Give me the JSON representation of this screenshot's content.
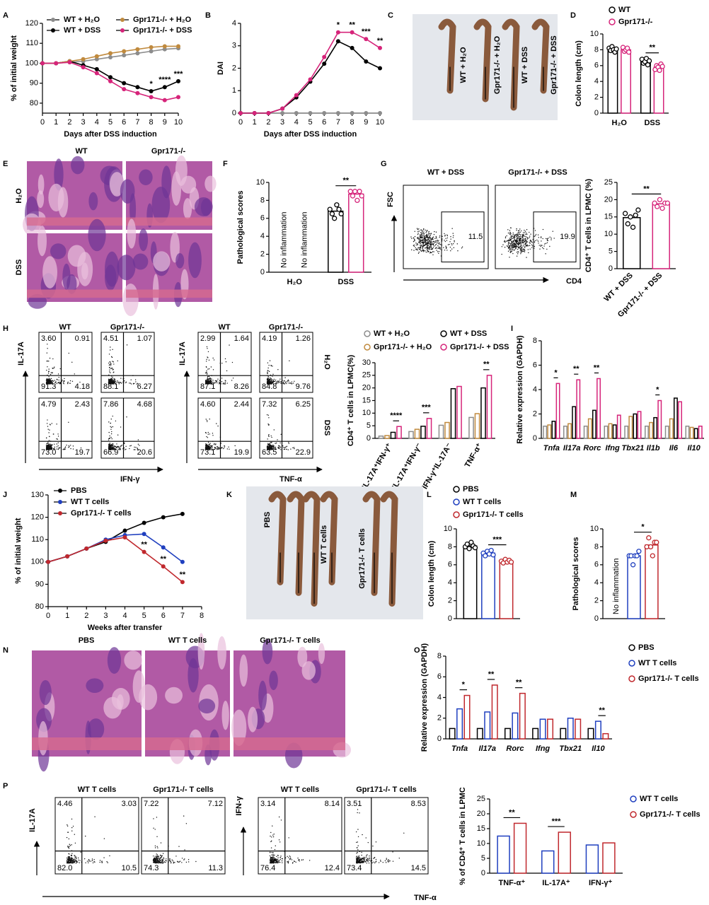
{
  "chart_data": [
    {
      "panel": "A",
      "type": "line",
      "ylabel": "% of initial weight",
      "xlabel": "Days after DSS induction",
      "x": [
        0,
        1,
        2,
        3,
        4,
        5,
        6,
        7,
        8,
        9,
        10
      ],
      "xlim": [
        0,
        10
      ],
      "xticks": [
        0,
        1,
        2,
        3,
        4,
        5,
        6,
        7,
        8,
        9,
        10
      ],
      "ylim": [
        75,
        120
      ],
      "yticks": [
        80,
        90,
        100,
        110,
        120
      ],
      "series": [
        {
          "name": "WT + H₂O",
          "color": "#8c8c8c",
          "values": [
            100,
            100,
            100.5,
            101,
            102,
            103,
            104,
            105,
            106,
            107,
            107.5
          ]
        },
        {
          "name": "WT + DSS",
          "color": "#000000",
          "values": [
            100,
            100,
            101,
            99,
            97,
            93,
            90,
            88,
            86,
            88,
            91
          ]
        },
        {
          "name": "Gpr171-/- + H₂O",
          "color": "#c08a3e",
          "values": [
            100,
            100,
            101,
            102,
            103.5,
            105,
            106,
            107,
            108,
            108.5,
            108.5
          ]
        },
        {
          "name": "Gpr171-/- + DSS",
          "color": "#d6247a",
          "values": [
            100,
            100,
            100.5,
            98,
            95,
            91,
            87,
            85,
            83,
            81.5,
            83
          ]
        }
      ],
      "significance": [
        null,
        null,
        null,
        null,
        null,
        null,
        null,
        null,
        "*",
        "****",
        "***"
      ]
    },
    {
      "panel": "B",
      "type": "line",
      "ylabel": "DAI",
      "xlabel": "Days after DSS induction",
      "x": [
        0,
        1,
        2,
        3,
        4,
        5,
        6,
        7,
        8,
        9,
        10
      ],
      "xlim": [
        0,
        10
      ],
      "xticks": [
        0,
        1,
        2,
        3,
        4,
        5,
        6,
        7,
        8,
        9,
        10
      ],
      "ylim": [
        0,
        4
      ],
      "yticks": [
        0,
        1,
        2,
        3,
        4
      ],
      "series": [
        {
          "color": "#8c8c8c",
          "values": [
            0,
            0,
            0,
            0,
            0,
            0,
            0,
            0,
            0,
            0,
            0
          ]
        },
        {
          "color": "#000000",
          "values": [
            0,
            0,
            0,
            0.2,
            0.7,
            1.4,
            2.2,
            3.2,
            2.9,
            2.3,
            2.0
          ]
        },
        {
          "color": "#d6247a",
          "values": [
            0,
            0,
            0,
            0.2,
            0.8,
            1.5,
            2.5,
            3.6,
            3.6,
            3.3,
            2.9
          ]
        }
      ],
      "significance": [
        null,
        null,
        null,
        null,
        null,
        null,
        null,
        "*",
        "**",
        "***",
        "**"
      ]
    },
    {
      "panel": "C",
      "type": "image",
      "labels": [
        "WT + H₂O",
        "Gpr171-/- + H₂O",
        "WT + DSS",
        "Gpr171-/- + DSS"
      ]
    },
    {
      "panel": "D",
      "type": "bar",
      "ylabel": "Colon length (cm)",
      "categories": [
        "H₂O",
        "DSS"
      ],
      "ylim": [
        0,
        10
      ],
      "yticks": [
        0,
        2,
        4,
        6,
        8,
        10
      ],
      "legend": true,
      "series": [
        {
          "name": "WT",
          "color": "#000000",
          "values": [
            8.0,
            6.5
          ],
          "points": [
            [
              8.2,
              7.9,
              8.4,
              8.0,
              7.7,
              8.1
            ],
            [
              6.8,
              6.3,
              6.5,
              6.9,
              6.1,
              6.6
            ]
          ]
        },
        {
          "name": "Gpr171-/-",
          "color": "#d6247a",
          "values": [
            8.0,
            5.8
          ],
          "points": [
            [
              8.3,
              7.8,
              8.0,
              8.2,
              7.7
            ],
            [
              5.5,
              6.0,
              5.8,
              5.4,
              6.2,
              5.9
            ]
          ]
        }
      ],
      "significance": [
        null,
        "**"
      ]
    },
    {
      "panel": "E",
      "type": "image",
      "column_labels": [
        "WT",
        "Gpr171-/-"
      ],
      "row_labels": [
        "H₂O",
        "DSS"
      ]
    },
    {
      "panel": "F",
      "type": "bar",
      "ylabel": "Pathological scores",
      "categories": [
        "H₂O",
        "DSS"
      ],
      "ylim": [
        0,
        10
      ],
      "yticks": [
        0,
        2,
        4,
        6,
        8,
        10
      ],
      "series": [
        {
          "color": "#000000",
          "values": [
            null,
            6.8
          ],
          "value_labels": [
            "No inflammation",
            null
          ],
          "points": [
            null,
            [
              7,
              6.5,
              6,
              7.5,
              7,
              6.5
            ]
          ]
        },
        {
          "color": "#d6247a",
          "values": [
            null,
            8.7
          ],
          "value_labels": [
            "No inflammation",
            null
          ],
          "points": [
            null,
            [
              9,
              8.5,
              9,
              8,
              9,
              8.5
            ]
          ]
        }
      ],
      "significance": [
        null,
        "**"
      ]
    },
    {
      "panel": "G",
      "type": "flow",
      "column_titles": [
        "WT + DSS",
        "Gpr171-/- + DSS"
      ],
      "y_labels": [
        "FSC"
      ],
      "x_labels": [
        "CD4"
      ],
      "plots": [
        {
          "gate": "11.5"
        },
        {
          "gate": "19.9"
        }
      ]
    },
    {
      "type": "bar",
      "ylabel": "CD4⁺ T cells in LPMC (%)",
      "categories": [
        "WT + DSS",
        "Gpr171-/- + DSS"
      ],
      "ylim": [
        0,
        25
      ],
      "yticks": [
        0,
        5,
        10,
        15,
        20,
        25
      ],
      "series": [
        {
          "colors": [
            "#000000",
            "#d6247a"
          ],
          "values": [
            14.8,
            18.8
          ],
          "points": [
            [
              16,
              13,
              15,
              12,
              15.5,
              17
            ],
            [
              19,
              18,
              20,
              17.5,
              19,
              19
            ]
          ]
        }
      ],
      "significance": "**"
    },
    {
      "panel": "H",
      "type": "flow",
      "column_titles": [
        "WT",
        "Gpr171-/-",
        "WT",
        "Gpr171-/-"
      ],
      "row_labels": [
        "H₂O",
        "DSS"
      ],
      "y_labels": [
        "IL-17A",
        "IL-17A"
      ],
      "x_labels": [
        "IFN-γ",
        "TNF-α"
      ],
      "plots": [
        {
          "quadrants": [
            "3.60",
            "0.91",
            "91.3",
            "4.18"
          ]
        },
        {
          "quadrants": [
            "4.51",
            "1.07",
            "88.1",
            "6.27"
          ]
        },
        {
          "quadrants": [
            "2.99",
            "1.64",
            "87.1",
            "8.26"
          ]
        },
        {
          "quadrants": [
            "4.19",
            "1.26",
            "84.8",
            "9.76"
          ]
        },
        {
          "quadrants": [
            "4.79",
            "2.43",
            "73.0",
            "19.7"
          ]
        },
        {
          "quadrants": [
            "7.86",
            "4.68",
            "66.9",
            "20.6"
          ]
        },
        {
          "quadrants": [
            "4.60",
            "2.44",
            "73.1",
            "19.9"
          ]
        },
        {
          "quadrants": [
            "7.32",
            "6.25",
            "63.5",
            "22.9"
          ]
        }
      ]
    },
    {
      "type": "bar",
      "ylabel": "CD4⁺ T cells in LPMC(%)",
      "categories": [
        "IL-17A⁺IFN-γ⁺",
        "IL-17A⁺IFN-γ⁻",
        "IFN-γ⁺IL-17A⁻",
        "TNF-α⁺"
      ],
      "ylim": [
        0,
        30
      ],
      "yticks": [
        0,
        5,
        10,
        15,
        20,
        25,
        30
      ],
      "legend": true,
      "series": [
        {
          "name": "WT + H₂O",
          "color": "#8c8c8c",
          "values": [
            0.9,
            2.7,
            5.2,
            8.3
          ]
        },
        {
          "name": "Gpr171-/- + H₂O",
          "color": "#c08a3e",
          "values": [
            1.1,
            3.6,
            6.3,
            9.8
          ]
        },
        {
          "name": "WT + DSS",
          "color": "#000000",
          "values": [
            2.4,
            4.8,
            19.7,
            20.0
          ]
        },
        {
          "name": "Gpr171-/- + DSS",
          "color": "#d6247a",
          "values": [
            4.7,
            7.9,
            20.6,
            25.0
          ]
        }
      ],
      "significance": [
        "****",
        "***",
        null,
        "**"
      ]
    },
    {
      "panel": "I",
      "type": "bar",
      "ylabel": "Relative expression (GAPDH)",
      "categories": [
        "Tnfa",
        "Il17a",
        "Rorc",
        "Ifng",
        "Tbx21",
        "Il1b",
        "Il6",
        "Il10"
      ],
      "ylim": [
        0,
        8
      ],
      "yticks": [
        0,
        2,
        4,
        6,
        8
      ],
      "series": [
        {
          "color": "#8c8c8c",
          "values": [
            1,
            1,
            1,
            1,
            1,
            1,
            1,
            1
          ]
        },
        {
          "color": "#c08a3e",
          "values": [
            1.1,
            1.2,
            1.6,
            1.2,
            1.8,
            1.3,
            1.6,
            0.9
          ]
        },
        {
          "color": "#000000",
          "values": [
            1.4,
            2.6,
            2.3,
            1.1,
            2.0,
            1.7,
            3.3,
            0.8
          ]
        },
        {
          "color": "#d6247a",
          "values": [
            4.5,
            4.8,
            4.9,
            1.9,
            2.2,
            3.1,
            3.0,
            1.0
          ]
        }
      ],
      "significance": [
        "*",
        "**",
        "**",
        null,
        null,
        "*",
        null,
        null
      ]
    },
    {
      "panel": "J",
      "type": "line",
      "ylabel": "% of initial weight",
      "xlabel": "Weeks after transfer",
      "x": [
        0,
        1,
        2,
        3,
        4,
        5,
        6,
        7
      ],
      "xlim": [
        0,
        8
      ],
      "xticks": [
        0,
        1,
        2,
        3,
        4,
        5,
        6,
        7,
        8
      ],
      "ylim": [
        80,
        130
      ],
      "yticks": [
        80,
        90,
        100,
        110,
        120,
        130
      ],
      "series": [
        {
          "name": "PBS",
          "color": "#000000",
          "values": [
            100,
            102.5,
            106,
            109,
            114,
            117.5,
            120,
            121.5
          ]
        },
        {
          "name": "WT T cells",
          "color": "#1f3fbf",
          "values": [
            100,
            102.5,
            106,
            110,
            112,
            112.5,
            106.5,
            100
          ]
        },
        {
          "name": "Gpr171-/- T cells",
          "color": "#c0282d",
          "values": [
            100,
            102.5,
            106,
            109.5,
            111,
            104.5,
            98,
            91
          ]
        }
      ],
      "significance": [
        null,
        null,
        null,
        null,
        null,
        "**",
        "**",
        "**"
      ]
    },
    {
      "panel": "K",
      "type": "image",
      "labels": [
        "PBS",
        "WT T cells",
        "Gpr171-/- T cells"
      ]
    },
    {
      "panel": "L",
      "type": "bar",
      "ylabel": "Colon length (cm)",
      "categories": [
        null
      ],
      "ylim": [
        0,
        10
      ],
      "yticks": [
        0,
        2,
        4,
        6,
        8,
        10
      ],
      "legend": true,
      "series": [
        {
          "name": "PBS",
          "color": "#000000",
          "values": [
            8.1
          ],
          "points": [
            [
              8,
              8.3,
              7.8,
              8.5,
              8.1,
              7.9
            ]
          ]
        },
        {
          "name": "WT T cells",
          "color": "#1f3fbf",
          "values": [
            7.3
          ],
          "points": [
            [
              7.3,
              7.0,
              7.5,
              7.2,
              7.6,
              7.1
            ]
          ]
        },
        {
          "name": "Gpr171-/- T cells",
          "color": "#c0282d",
          "values": [
            6.4
          ],
          "points": [
            [
              6.4,
              6.2,
              6.6,
              6.3,
              6.5,
              6.3
            ]
          ]
        }
      ],
      "significance": [
        "***"
      ]
    },
    {
      "panel": "M",
      "type": "bar",
      "ylabel": "Pathological scores",
      "categories": [
        null
      ],
      "ylim": [
        0,
        10
      ],
      "yticks": [
        0,
        2,
        4,
        6,
        8,
        10
      ],
      "series": [
        {
          "color": "#000000",
          "values": [
            null
          ],
          "value_labels": [
            "No inflammation"
          ]
        },
        {
          "color": "#1f3fbf",
          "values": [
            7.0
          ],
          "points": [
            [
              7,
              7,
              6,
              7,
              7,
              7.5
            ]
          ]
        },
        {
          "color": "#c0282d",
          "values": [
            8.2
          ],
          "points": [
            [
              8,
              9,
              8,
              7,
              8.5,
              8.5
            ]
          ]
        }
      ],
      "significance": [
        "*"
      ]
    },
    {
      "panel": "N",
      "type": "image",
      "column_labels": [
        "PBS",
        "WT T cells",
        "Gpr171-/- T cells"
      ]
    },
    {
      "panel": "O",
      "type": "bar",
      "ylabel": "Relative expression (GAPDH)",
      "categories": [
        "Tnfa",
        "Il17a",
        "Rorc",
        "Ifng",
        "Tbx21",
        "Il10"
      ],
      "ylim": [
        0,
        8
      ],
      "yticks": [
        0,
        2,
        4,
        6,
        8
      ],
      "legend": true,
      "series": [
        {
          "name": "PBS",
          "color": "#000000",
          "values": [
            1,
            1,
            1,
            1,
            1,
            1
          ]
        },
        {
          "name": "WT T cells",
          "color": "#1f3fbf",
          "values": [
            2.9,
            2.6,
            2.5,
            1.9,
            2.0,
            1.7
          ]
        },
        {
          "name": "Gpr171-/- T cells",
          "color": "#c0282d",
          "values": [
            4.2,
            5.2,
            4.4,
            1.9,
            1.9,
            0.5
          ]
        }
      ],
      "significance": [
        "*",
        "**",
        "**",
        null,
        null,
        "**"
      ]
    },
    {
      "panel": "P",
      "type": "flow",
      "column_titles": [
        "WT T cells",
        "Gpr171-/- T cells",
        "WT T cells",
        "Gpr171-/- T cells"
      ],
      "y_labels": [
        "IL-17A",
        "IFN-γ"
      ],
      "x_labels": [
        "TNF-α"
      ],
      "plots": [
        {
          "quadrants": [
            "4.46",
            "3.03",
            "82.0",
            "10.5"
          ]
        },
        {
          "quadrants": [
            "7.22",
            "7.12",
            "74.3",
            "11.3"
          ]
        },
        {
          "quadrants": [
            "3.14",
            "8.14",
            "76.4",
            "12.4"
          ]
        },
        {
          "quadrants": [
            "3.51",
            "8.53",
            "73.4",
            "14.5"
          ]
        }
      ]
    },
    {
      "type": "bar",
      "ylabel": "% of CD4⁺ T cells in LPMC",
      "categories": [
        "TNF-α⁺",
        "IL-17A⁺",
        "IFN-γ⁺"
      ],
      "ylim": [
        0,
        25
      ],
      "yticks": [
        0,
        5,
        10,
        15,
        20,
        25
      ],
      "legend": true,
      "series": [
        {
          "name": "WT T cells",
          "color": "#1f3fbf",
          "values": [
            12.5,
            7.5,
            9.5
          ]
        },
        {
          "name": "Gpr171-/- T cells",
          "color": "#c0282d",
          "values": [
            16.8,
            13.8,
            10.2
          ]
        }
      ],
      "significance": [
        "**",
        "***",
        null
      ]
    }
  ]
}
